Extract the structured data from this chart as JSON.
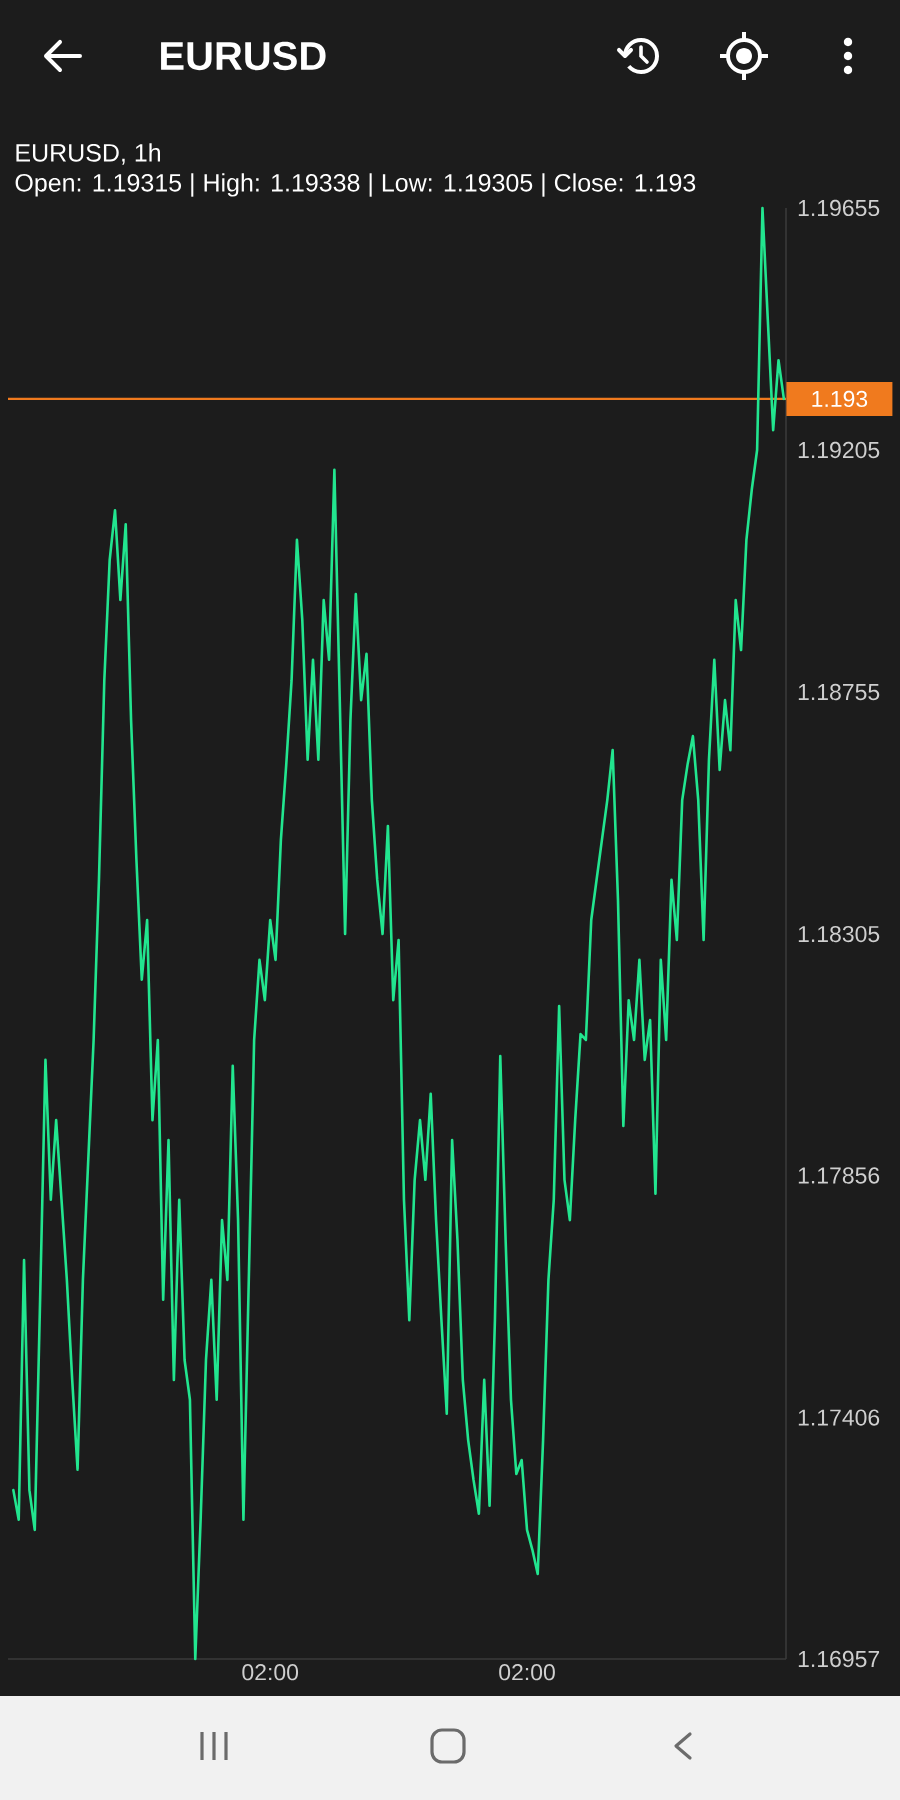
{
  "chart_data": {
    "type": "line",
    "title": "EURUSD",
    "subtitle": "EURUSD, 1h",
    "annotations": [
      "Open: 1.19315 | High: 1.19338 | Low: 1.19305 | Close: 1.193"
    ],
    "categories": [
      null,
      null,
      null,
      null,
      null,
      null,
      null,
      null,
      null,
      null,
      null,
      null,
      null,
      null,
      null,
      null,
      null,
      null,
      null,
      null,
      null,
      null,
      null,
      null,
      null,
      null,
      null,
      null,
      null,
      null,
      null,
      null,
      null,
      null,
      null,
      null,
      null,
      null,
      null,
      null,
      null,
      null,
      null,
      null,
      null,
      null,
      null,
      null,
      "02:00",
      null,
      null,
      null,
      null,
      null,
      null,
      null,
      null,
      null,
      null,
      null,
      null,
      null,
      null,
      null,
      null,
      null,
      null,
      null,
      null,
      null,
      null,
      null,
      null,
      null,
      null,
      null,
      null,
      null,
      null,
      null,
      null,
      null,
      null,
      null,
      null,
      null,
      null,
      null,
      null,
      null,
      null,
      null,
      null,
      null,
      null,
      null,
      "02:00",
      null,
      null,
      null,
      null,
      null,
      null,
      null,
      null,
      null,
      null,
      null,
      null,
      null,
      null,
      null,
      null,
      null,
      null,
      null,
      null,
      null,
      null,
      null,
      null,
      null,
      null,
      null,
      null,
      null,
      null,
      null,
      null,
      null,
      null,
      null,
      null,
      null,
      null,
      null,
      null,
      null,
      null,
      null,
      null,
      null,
      null,
      null,
      null
    ],
    "values": [
      1.17271,
      1.17216,
      1.17699,
      1.17271,
      1.17197,
      1.17625,
      1.18071,
      1.17811,
      1.17959,
      1.17811,
      1.17662,
      1.17476,
      1.17309,
      1.17662,
      1.17885,
      1.18108,
      1.18406,
      1.18777,
      1.19,
      1.19093,
      1.18926,
      1.19067,
      1.18703,
      1.18443,
      1.1822,
      1.18331,
      1.17959,
      1.18108,
      1.17625,
      1.17922,
      1.17476,
      1.17811,
      1.17513,
      1.17439,
      1.16957,
      1.17216,
      1.17513,
      1.17662,
      1.17439,
      1.17773,
      1.17662,
      1.1806,
      1.17773,
      1.17216,
      1.17662,
      1.18108,
      1.18257,
      1.18182,
      1.18331,
      1.18257,
      1.1848,
      1.1862,
      1.18777,
      1.19038,
      1.18889,
      1.18629,
      1.18815,
      1.18629,
      1.18926,
      1.18815,
      1.19168,
      1.1874,
      1.18305,
      1.18703,
      1.18937,
      1.1874,
      1.18826,
      1.18554,
      1.18406,
      1.18305,
      1.18506,
      1.18182,
      1.18294,
      1.17811,
      1.17587,
      1.17848,
      1.17959,
      1.17848,
      1.18008,
      1.17773,
      1.17587,
      1.17413,
      1.17922,
      1.17736,
      1.17476,
      1.17364,
      1.1729,
      1.17227,
      1.17476,
      1.17242,
      1.17587,
      1.18078,
      1.17736,
      1.17439,
      1.17301,
      1.17327,
      1.17197,
      1.1716,
      1.17115,
      1.17364,
      1.17662,
      1.17811,
      1.18171,
      1.17848,
      1.17773,
      1.17959,
      1.18119,
      1.18108,
      1.18331,
      1.18406,
      1.1848,
      1.18554,
      1.18647,
      1.18368,
      1.17948,
      1.18182,
      1.18108,
      1.18257,
      1.18071,
      1.18145,
      1.17822,
      1.18257,
      1.18108,
      1.18406,
      1.18294,
      1.18554,
      1.1862,
      1.18673,
      1.18554,
      1.18294,
      1.18629,
      1.18815,
      1.1861,
      1.1874,
      1.18647,
      1.18926,
      1.18833,
      1.19038,
      1.19131,
      1.19205,
      1.19655,
      1.19447,
      1.19242,
      1.19372,
      1.193
    ],
    "color": "#22e58f",
    "line_style": "solid",
    "ylim": [
      1.16957,
      1.19655
    ],
    "yticks": [
      1.16957,
      1.17406,
      1.17856,
      1.18305,
      1.18755,
      1.19205,
      1.19655
    ],
    "ref_lines": [
      {
        "axis": "y",
        "value": 1.193,
        "label": "1.193",
        "color": "#f07a1e"
      }
    ]
  }
}
